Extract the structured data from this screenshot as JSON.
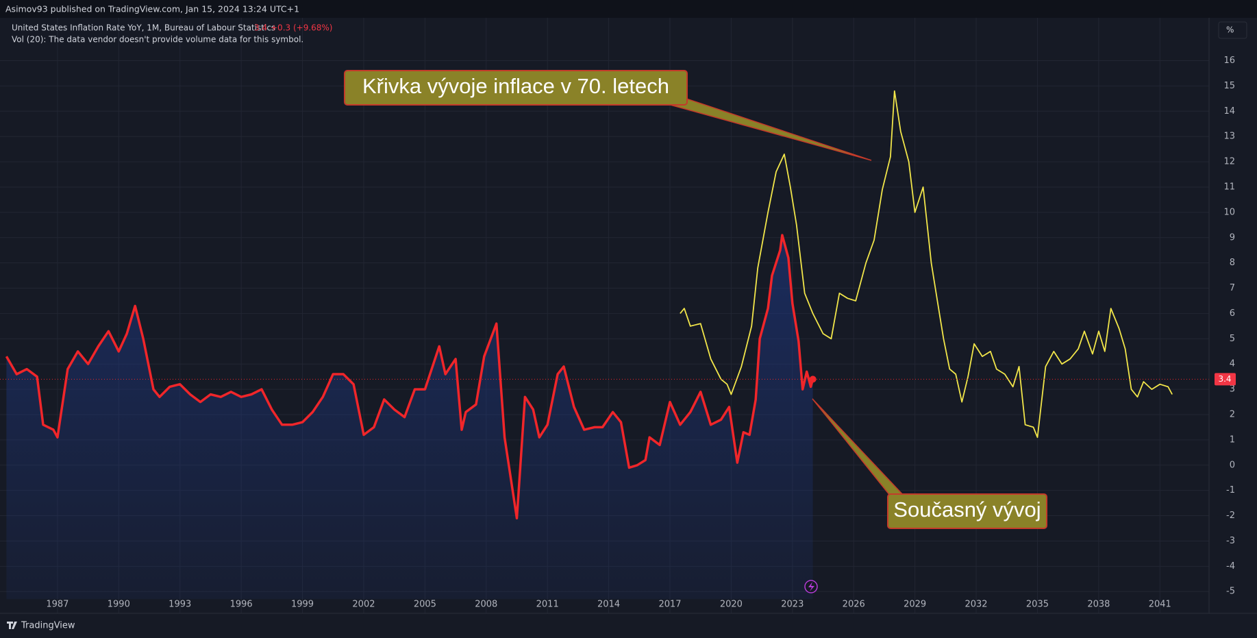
{
  "header": {
    "text": "Asimov93 published on TradingView.com, Jan 15, 2024 13:24 UTC+1"
  },
  "legend": {
    "change": "+0.3 (+9.68%)",
    "volume_note": "Vol (20): The data vendor doesn't provide volume data for this symbol."
  },
  "scale_button": "%",
  "footer": {
    "brand": "TradingView"
  },
  "chart_data": {
    "type": "line",
    "xlim": [
      1984.5,
      2043.4
    ],
    "ylim": [
      -5.3,
      17.6
    ],
    "xticks": [
      1987,
      1990,
      1993,
      1996,
      1999,
      2002,
      2005,
      2008,
      2011,
      2014,
      2017,
      2020,
      2023,
      2026,
      2029,
      2032,
      2035,
      2038,
      2041
    ],
    "yticks": [
      -5,
      -4,
      -3,
      -2,
      -1,
      0,
      1,
      2,
      3,
      4,
      5,
      6,
      7,
      8,
      9,
      10,
      11,
      12,
      13,
      14,
      15,
      16
    ],
    "grid": true,
    "series": [
      {
        "name": "United States Inflation Rate YoY, 1M, Bureau of Labour Statistics",
        "color": "#f0262a",
        "area": true,
        "x": [
          1984.5,
          1985.0,
          1985.5,
          1986.0,
          1986.3,
          1986.8,
          1987.0,
          1987.5,
          1988.0,
          1988.5,
          1989.0,
          1989.5,
          1990.0,
          1990.4,
          1990.8,
          1991.2,
          1991.7,
          1992.0,
          1992.5,
          1993.0,
          1993.5,
          1994.0,
          1994.5,
          1995.0,
          1995.5,
          1996.0,
          1996.5,
          1997.0,
          1997.5,
          1998.0,
          1998.5,
          1999.0,
          1999.5,
          2000.0,
          2000.5,
          2001.0,
          2001.5,
          2002.0,
          2002.5,
          2003.0,
          2003.5,
          2004.0,
          2004.5,
          2005.0,
          2005.7,
          2006.0,
          2006.5,
          2006.8,
          2007.0,
          2007.5,
          2007.9,
          2008.5,
          2008.9,
          2009.5,
          2009.9,
          2010.3,
          2010.6,
          2011.0,
          2011.5,
          2011.8,
          2012.3,
          2012.8,
          2013.3,
          2013.7,
          2014.2,
          2014.6,
          2015.0,
          2015.4,
          2015.8,
          2016.0,
          2016.5,
          2017.0,
          2017.5,
          2018.0,
          2018.5,
          2019.0,
          2019.5,
          2019.9,
          2020.3,
          2020.6,
          2020.9,
          2021.2,
          2021.4,
          2021.8,
          2022.0,
          2022.4,
          2022.5,
          2022.8,
          2023.0,
          2023.3,
          2023.5,
          2023.7,
          2023.9,
          2024.0
        ],
        "values": [
          4.3,
          3.6,
          3.8,
          3.5,
          1.6,
          1.4,
          1.1,
          3.8,
          4.5,
          4.0,
          4.7,
          5.3,
          4.5,
          5.2,
          6.3,
          5.0,
          3.0,
          2.7,
          3.1,
          3.2,
          2.8,
          2.5,
          2.8,
          2.7,
          2.9,
          2.7,
          2.8,
          3.0,
          2.2,
          1.6,
          1.6,
          1.7,
          2.1,
          2.7,
          3.6,
          3.6,
          3.2,
          1.2,
          1.5,
          2.6,
          2.2,
          1.9,
          3.0,
          3.0,
          4.7,
          3.6,
          4.2,
          1.4,
          2.1,
          2.4,
          4.3,
          5.6,
          1.1,
          -2.1,
          2.7,
          2.2,
          1.1,
          1.6,
          3.6,
          3.9,
          2.3,
          1.4,
          1.5,
          1.5,
          2.1,
          1.7,
          -0.1,
          0.0,
          0.2,
          1.1,
          0.8,
          2.5,
          1.6,
          2.1,
          2.9,
          1.6,
          1.8,
          2.3,
          0.1,
          1.3,
          1.2,
          2.6,
          5.0,
          6.2,
          7.5,
          8.5,
          9.1,
          8.2,
          6.4,
          4.9,
          3.0,
          3.7,
          3.1,
          3.4
        ]
      },
      {
        "color": "#f2e64a",
        "x": [
          2017.5,
          2017.7,
          2018.0,
          2018.5,
          2019.0,
          2019.5,
          2019.8,
          2020.0,
          2020.5,
          2021.0,
          2021.3,
          2021.8,
          2022.2,
          2022.6,
          2022.9,
          2023.2,
          2023.6,
          2024.0,
          2024.5,
          2024.9,
          2025.3,
          2025.7,
          2026.1,
          2026.6,
          2027.0,
          2027.4,
          2027.8,
          2028.0,
          2028.3,
          2028.7,
          2029.0,
          2029.4,
          2029.8,
          2030.1,
          2030.4,
          2030.7,
          2031.0,
          2031.3,
          2031.6,
          2031.9,
          2032.3,
          2032.7,
          2033.0,
          2033.4,
          2033.8,
          2034.1,
          2034.4,
          2034.8,
          2035.0,
          2035.4,
          2035.8,
          2036.2,
          2036.6,
          2037.0,
          2037.3,
          2037.7,
          2038.0,
          2038.3,
          2038.6,
          2039.0,
          2039.3,
          2039.6,
          2039.9,
          2040.2,
          2040.6,
          2041.0,
          2041.4,
          2041.6
        ],
        "values": [
          6.0,
          6.2,
          5.5,
          5.6,
          4.2,
          3.4,
          3.2,
          2.8,
          3.9,
          5.5,
          7.8,
          10.0,
          11.6,
          12.3,
          11.0,
          9.5,
          6.8,
          6.0,
          5.2,
          5.0,
          6.8,
          6.6,
          6.5,
          8.0,
          8.9,
          10.9,
          12.2,
          14.8,
          13.2,
          12.0,
          10.0,
          11.0,
          8.0,
          6.5,
          5.0,
          3.8,
          3.6,
          2.5,
          3.5,
          4.8,
          4.3,
          4.5,
          3.8,
          3.6,
          3.1,
          3.9,
          1.6,
          1.5,
          1.1,
          3.9,
          4.5,
          4.0,
          4.2,
          4.6,
          5.3,
          4.4,
          5.3,
          4.5,
          6.2,
          5.4,
          4.6,
          3.0,
          2.7,
          3.3,
          3.0,
          3.2,
          3.1,
          2.8
        ]
      }
    ],
    "annotations": [
      {
        "text": "Křivka vývoje inflace v 70. letech"
      },
      {
        "text": "Současný vývoj"
      }
    ]
  }
}
